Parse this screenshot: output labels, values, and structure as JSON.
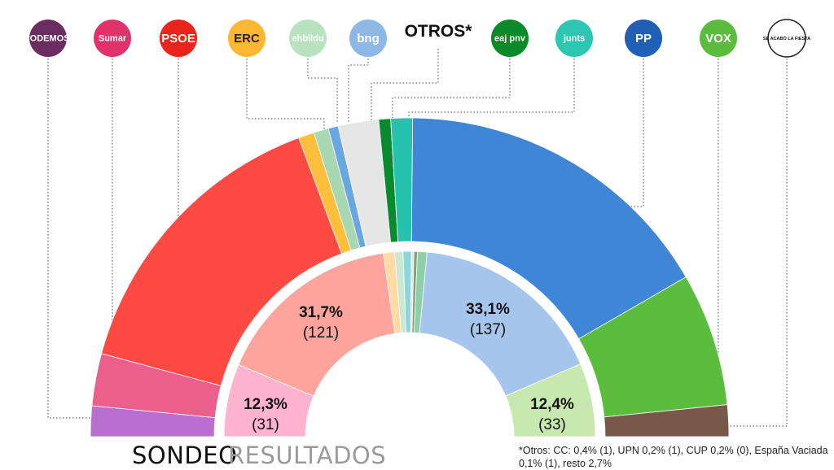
{
  "chart_data": [
    {
      "type": "semicircle",
      "name": "Sondeo",
      "segments": [
        {
          "party": "Podemos",
          "share": 3.1,
          "color": "#b86fcf"
        },
        {
          "party": "Sumar",
          "share": 5.3,
          "color": "#ea5f8c"
        },
        {
          "party": "PSOE",
          "share": 30.3,
          "color": "#ff4a44"
        },
        {
          "party": "ERC",
          "share": 1.6,
          "color": "#ffbf3d"
        },
        {
          "party": "EH Bildu",
          "share": 1.5,
          "color": "#a8d8b2"
        },
        {
          "party": "BNG",
          "share": 1.0,
          "color": "#6aa7e0"
        },
        {
          "party": "Otros",
          "share": 4.1,
          "color": "#e6e6e6"
        },
        {
          "party": "PNV",
          "share": 1.2,
          "color": "#0a8a2e"
        },
        {
          "party": "Junts",
          "share": 2.2,
          "color": "#25c3ad"
        },
        {
          "party": "PP",
          "share": 33.0,
          "color": "#3f87d6"
        },
        {
          "party": "Vox",
          "share": 13.5,
          "color": "#5bbd3e"
        },
        {
          "party": "Se Acabó La Fiesta",
          "share": 3.2,
          "color": "#785848"
        }
      ]
    },
    {
      "type": "semicircle",
      "name": "Resultados",
      "segments": [
        {
          "party": "Sumar",
          "share": 12.3,
          "seats": 31,
          "color": "#ffb3cf"
        },
        {
          "party": "PSOE",
          "share": 31.7,
          "seats": 121,
          "color": "#ffa49c"
        },
        {
          "party": "ERC",
          "share": 1.9,
          "color": "#ffdca6"
        },
        {
          "party": "EH Bildu",
          "share": 1.4,
          "color": "#cbe8d2"
        },
        {
          "party": "BNG",
          "share": 1.4,
          "color": "#8fd6da"
        },
        {
          "party": "Otros",
          "share": 0.4,
          "color": "#e6e6e6"
        },
        {
          "party": "PNV",
          "share": 0.6,
          "color": "#7da57b"
        },
        {
          "party": "Junts",
          "share": 1.6,
          "color": "#8fcfa8"
        },
        {
          "party": "PP",
          "share": 33.1,
          "seats": 137,
          "color": "#a6c5ec"
        },
        {
          "party": "Vox",
          "share": 12.4,
          "seats": 33,
          "color": "#c7e8ae"
        }
      ]
    }
  ],
  "labels": {
    "psoe": {
      "pct": "31,7%",
      "seats": "(121)"
    },
    "pp": {
      "pct": "33,1%",
      "seats": "(137)"
    },
    "sumar": {
      "pct": "12,3%",
      "seats": "(31)"
    },
    "vox": {
      "pct": "12,4%",
      "seats": "(33)"
    }
  },
  "logos": [
    {
      "text": "PODEMOS.",
      "bg": "#6b2c5f",
      "fg": "#ffffff",
      "icon": "podemos-logo"
    },
    {
      "text": "Sumar",
      "bg": "#e0336b",
      "fg": "#ffffff",
      "icon": "sumar-logo"
    },
    {
      "text": "PSOE",
      "bg": "#e8241b",
      "fg": "#ffffff",
      "icon": "psoe-logo"
    },
    {
      "text": "ERC",
      "bg": "#ffb733",
      "fg": "#222222",
      "icon": "erc-logo"
    },
    {
      "text": "ehbildu",
      "bg": "#b9e3bf",
      "fg": "#ffffff",
      "icon": "ehbildu-logo"
    },
    {
      "text": "bng",
      "bg": "#8db8e6",
      "fg": "#ffffff",
      "icon": "bng-logo"
    },
    {
      "text": "OTROS*",
      "bg": "",
      "fg": "#111111",
      "icon": "otros-label"
    },
    {
      "text": "eaj pnv",
      "bg": "#0b8a2a",
      "fg": "#ffffff",
      "icon": "pnv-logo"
    },
    {
      "text": "junts",
      "bg": "#2cc7b0",
      "fg": "#ffffff",
      "icon": "junts-logo"
    },
    {
      "text": "PP",
      "bg": "#1f5fb5",
      "fg": "#ffffff",
      "icon": "pp-logo"
    },
    {
      "text": "VOX",
      "bg": "#5bbd3e",
      "fg": "#ffffff",
      "icon": "vox-logo"
    },
    {
      "text": "SE ACABÓ LA FIESTA",
      "bg": "#ffffff",
      "fg": "#111111",
      "icon": "salf-logo"
    }
  ],
  "legend": {
    "sondeo": "SONDEO",
    "resultados": "RESULTADOS"
  },
  "footnote": "*Otros: CC: 0,4% (1), UPN 0,2% (1), CUP 0,2% (0), España Vaciada 0,1% (1), resto 2,7%"
}
